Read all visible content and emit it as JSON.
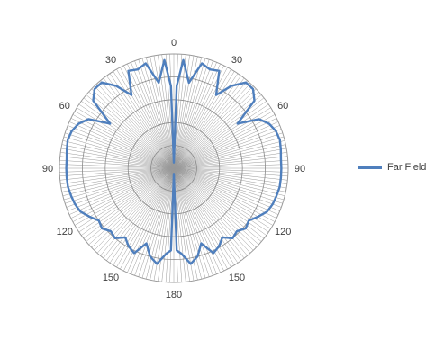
{
  "chart_data": {
    "type": "line",
    "subtype": "polar",
    "title": "",
    "series": [
      {
        "name": "Far Field",
        "color": "#4f7fbd",
        "theta": [
          0,
          2,
          5,
          10,
          15,
          20,
          25,
          30,
          35,
          40,
          45,
          50,
          55,
          60,
          65,
          70,
          75,
          80,
          85,
          90,
          95,
          100,
          105,
          110,
          115,
          120,
          125,
          130,
          135,
          140,
          145,
          150,
          155,
          160,
          165,
          170,
          175,
          178,
          180
        ],
        "r": [
          0.05,
          0.72,
          0.95,
          0.76,
          0.95,
          0.92,
          0.94,
          0.74,
          0.88,
          0.98,
          0.98,
          0.92,
          0.68,
          0.86,
          0.92,
          0.95,
          0.96,
          0.95,
          0.94,
          0.94,
          0.94,
          0.94,
          0.93,
          0.92,
          0.9,
          0.85,
          0.8,
          0.82,
          0.78,
          0.8,
          0.74,
          0.79,
          0.82,
          0.7,
          0.8,
          0.85,
          0.75,
          0.72,
          0.05
        ]
      }
    ],
    "angular_ticks": [
      "0",
      "30",
      "60",
      "90",
      "120",
      "150",
      "180",
      "150",
      "120",
      "90",
      "60",
      "30"
    ],
    "angular_tick_angles": [
      0,
      30,
      60,
      90,
      120,
      150,
      180,
      210,
      240,
      270,
      300,
      330
    ],
    "symmetric": true,
    "rlim": [
      0,
      1
    ],
    "grid": true,
    "legend_position": "right"
  }
}
